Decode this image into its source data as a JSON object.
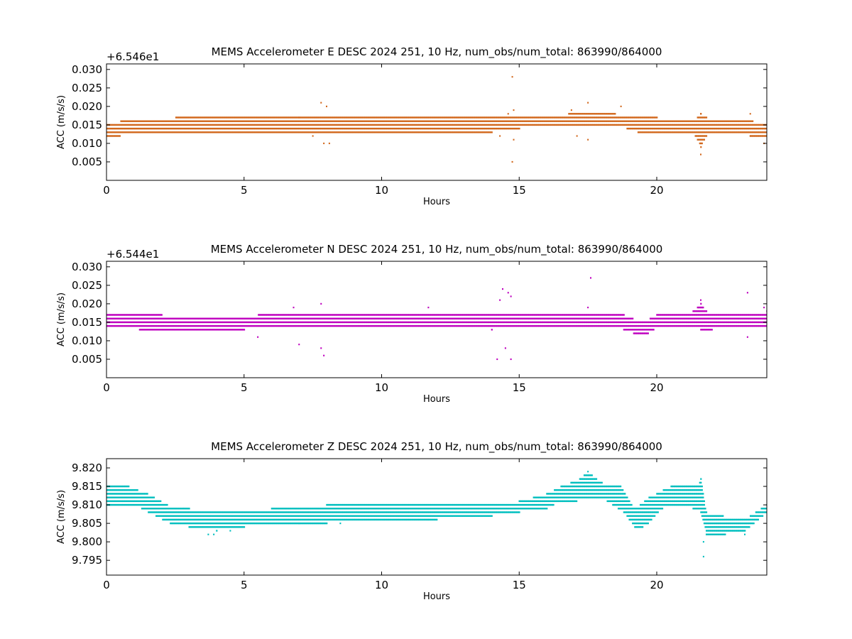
{
  "chart_data": [
    {
      "type": "scatter",
      "title": "MEMS Accelerometer E DESC 2024 251, 10 Hz, num_obs/num_total: 863990/864000",
      "xlabel": "Hours",
      "ylabel": "ACC (m/s/s)",
      "offset_label": "+6.546e1",
      "xlim": [
        0,
        24
      ],
      "ylim": [
        0.0,
        0.0315
      ],
      "xticks": [
        0,
        5,
        10,
        15,
        20
      ],
      "yticks": [
        0.005,
        0.01,
        0.015,
        0.02,
        0.025,
        0.03
      ],
      "ytick_labels": [
        "0.005",
        "0.010",
        "0.015",
        "0.020",
        "0.025",
        "0.030"
      ],
      "color": "#d2691e",
      "grid": false,
      "band_upper": [
        [
          0,
          0.015
        ],
        [
          0.5,
          0.016
        ],
        [
          1.5,
          0.016
        ],
        [
          2.5,
          0.017
        ],
        [
          6,
          0.017
        ],
        [
          9,
          0.017
        ],
        [
          13,
          0.017
        ],
        [
          14.5,
          0.017
        ],
        [
          16,
          0.017
        ],
        [
          16.8,
          0.018
        ],
        [
          18.5,
          0.018
        ],
        [
          19.1,
          0.017
        ],
        [
          20,
          0.017
        ],
        [
          21.3,
          0.016
        ],
        [
          21.6,
          0.018
        ],
        [
          22,
          0.016
        ],
        [
          23.5,
          0.016
        ],
        [
          24,
          0.015
        ]
      ],
      "band_lower": [
        [
          0,
          0.012
        ],
        [
          0.5,
          0.012
        ],
        [
          1.5,
          0.013
        ],
        [
          3,
          0.013
        ],
        [
          5,
          0.013
        ],
        [
          6,
          0.013
        ],
        [
          10,
          0.013
        ],
        [
          14,
          0.013
        ],
        [
          15,
          0.014
        ],
        [
          16.5,
          0.015
        ],
        [
          17.5,
          0.015
        ],
        [
          18.5,
          0.015
        ],
        [
          19.3,
          0.013
        ],
        [
          20,
          0.013
        ],
        [
          20.8,
          0.013
        ],
        [
          21.3,
          0.013
        ],
        [
          21.6,
          0.009
        ],
        [
          21.9,
          0.013
        ],
        [
          23.4,
          0.012
        ],
        [
          24,
          0.012
        ]
      ],
      "outliers": [
        [
          7.8,
          0.021
        ],
        [
          7.9,
          0.01
        ],
        [
          8.1,
          0.01
        ],
        [
          8.0,
          0.02
        ],
        [
          7.5,
          0.012
        ],
        [
          7.0,
          0.017
        ],
        [
          14.75,
          0.028
        ],
        [
          14.75,
          0.005
        ],
        [
          14.8,
          0.019
        ],
        [
          14.8,
          0.011
        ],
        [
          14.6,
          0.018
        ],
        [
          17.1,
          0.012
        ],
        [
          17.5,
          0.021
        ],
        [
          17.5,
          0.011
        ],
        [
          21.6,
          0.007
        ],
        [
          21.6,
          0.018
        ],
        [
          23.4,
          0.012
        ],
        [
          23.4,
          0.018
        ],
        [
          23.9,
          0.01
        ],
        [
          16.9,
          0.019
        ],
        [
          18.7,
          0.02
        ],
        [
          14.3,
          0.012
        ]
      ]
    },
    {
      "type": "scatter",
      "title": "MEMS Accelerometer N DESC 2024 251, 10 Hz, num_obs/num_total: 863990/864000",
      "xlabel": "Hours",
      "ylabel": "ACC (m/s/s)",
      "offset_label": "+6.544e1",
      "xlim": [
        0,
        24
      ],
      "ylim": [
        0.0,
        0.0315
      ],
      "xticks": [
        0,
        5,
        10,
        15,
        20
      ],
      "yticks": [
        0.005,
        0.01,
        0.015,
        0.02,
        0.025,
        0.03
      ],
      "ytick_labels": [
        "0.005",
        "0.010",
        "0.015",
        "0.020",
        "0.025",
        "0.030"
      ],
      "color": "#bf00bf",
      "grid": false,
      "band_upper": [
        [
          0,
          0.017
        ],
        [
          2,
          0.017
        ],
        [
          2.2,
          0.016
        ],
        [
          5,
          0.016
        ],
        [
          5.5,
          0.017
        ],
        [
          14,
          0.017
        ],
        [
          15,
          0.017
        ],
        [
          16.5,
          0.017
        ],
        [
          17.3,
          0.018
        ],
        [
          18.8,
          0.017
        ],
        [
          19.5,
          0.015
        ],
        [
          20,
          0.017
        ],
        [
          21.3,
          0.018
        ],
        [
          21.6,
          0.02
        ],
        [
          21.9,
          0.017
        ],
        [
          23.5,
          0.017
        ],
        [
          24,
          0.018
        ]
      ],
      "band_lower": [
        [
          0,
          0.014
        ],
        [
          1.2,
          0.013
        ],
        [
          2,
          0.013
        ],
        [
          3,
          0.013
        ],
        [
          5,
          0.013
        ],
        [
          6,
          0.014
        ],
        [
          10,
          0.014
        ],
        [
          14,
          0.013
        ],
        [
          15,
          0.014
        ],
        [
          16,
          0.014
        ],
        [
          17,
          0.014
        ],
        [
          18,
          0.014
        ],
        [
          18.8,
          0.013
        ],
        [
          19.5,
          0.011
        ],
        [
          19.9,
          0.013
        ],
        [
          20.5,
          0.014
        ],
        [
          21.3,
          0.014
        ],
        [
          21.6,
          0.013
        ],
        [
          22,
          0.013
        ],
        [
          23.5,
          0.014
        ],
        [
          24,
          0.014
        ]
      ],
      "outliers": [
        [
          7.8,
          0.02
        ],
        [
          7.9,
          0.006
        ],
        [
          7.8,
          0.008
        ],
        [
          7.0,
          0.009
        ],
        [
          6.8,
          0.019
        ],
        [
          14.4,
          0.024
        ],
        [
          14.6,
          0.023
        ],
        [
          14.2,
          0.005
        ],
        [
          14.7,
          0.005
        ],
        [
          14.7,
          0.022
        ],
        [
          17.6,
          0.027
        ],
        [
          17.5,
          0.019
        ],
        [
          21.6,
          0.021
        ],
        [
          23.3,
          0.023
        ],
        [
          23.3,
          0.011
        ],
        [
          23.9,
          0.019
        ],
        [
          11.7,
          0.019
        ],
        [
          5.5,
          0.011
        ],
        [
          14.5,
          0.008
        ],
        [
          14.3,
          0.021
        ]
      ]
    },
    {
      "type": "scatter",
      "title": "MEMS Accelerometer Z DESC 2024 251, 10 Hz, num_obs/num_total: 863990/864000",
      "xlabel": "Hours",
      "ylabel": "ACC (m/s/s)",
      "offset_label": "",
      "xlim": [
        0,
        24
      ],
      "ylim": [
        9.791,
        9.8225
      ],
      "xticks": [
        0,
        5,
        10,
        15,
        20
      ],
      "yticks": [
        9.795,
        9.8,
        9.805,
        9.81,
        9.815,
        9.82
      ],
      "ytick_labels": [
        "9.795",
        "9.800",
        "9.805",
        "9.810",
        "9.815",
        "9.820"
      ],
      "color": "#00bfbf",
      "grid": false,
      "band_upper": [
        [
          0,
          9.815
        ],
        [
          0.8,
          9.815
        ],
        [
          1.5,
          9.813
        ],
        [
          2.2,
          9.81
        ],
        [
          3,
          9.809
        ],
        [
          4,
          9.808
        ],
        [
          5,
          9.808
        ],
        [
          6,
          9.809
        ],
        [
          8,
          9.81
        ],
        [
          10,
          9.81
        ],
        [
          12,
          9.81
        ],
        [
          14,
          9.81
        ],
        [
          15,
          9.811
        ],
        [
          16,
          9.813
        ],
        [
          16.5,
          9.815
        ],
        [
          17.2,
          9.817
        ],
        [
          17.5,
          9.819
        ],
        [
          18,
          9.816
        ],
        [
          18.7,
          9.815
        ],
        [
          19.2,
          9.809
        ],
        [
          19.7,
          9.812
        ],
        [
          20.5,
          9.815
        ],
        [
          21.5,
          9.815
        ],
        [
          21.6,
          9.817
        ],
        [
          21.8,
          9.808
        ],
        [
          22.4,
          9.807
        ],
        [
          23.2,
          9.806
        ],
        [
          24,
          9.81
        ]
      ],
      "band_lower": [
        [
          0,
          9.81
        ],
        [
          1,
          9.81
        ],
        [
          1.5,
          9.808
        ],
        [
          2.3,
          9.805
        ],
        [
          3,
          9.804
        ],
        [
          4,
          9.803
        ],
        [
          5,
          9.804
        ],
        [
          6,
          9.805
        ],
        [
          8,
          9.805
        ],
        [
          10,
          9.806
        ],
        [
          12,
          9.806
        ],
        [
          14,
          9.807
        ],
        [
          15,
          9.808
        ],
        [
          16,
          9.809
        ],
        [
          16.5,
          9.811
        ],
        [
          17.1,
          9.811
        ],
        [
          17.5,
          9.812
        ],
        [
          18.2,
          9.811
        ],
        [
          18.8,
          9.808
        ],
        [
          19.3,
          9.803
        ],
        [
          19.7,
          9.805
        ],
        [
          20.2,
          9.809
        ],
        [
          21,
          9.81
        ],
        [
          21.6,
          9.808
        ],
        [
          21.8,
          9.802
        ],
        [
          22.5,
          9.802
        ],
        [
          23.2,
          9.803
        ],
        [
          24,
          9.808
        ]
      ],
      "outliers": [
        [
          3.7,
          9.802
        ],
        [
          3.9,
          9.802
        ],
        [
          4.5,
          9.803
        ],
        [
          21.7,
          9.796
        ],
        [
          21.7,
          9.8
        ],
        [
          17.5,
          9.819
        ],
        [
          23.2,
          9.802
        ],
        [
          2.8,
          9.809
        ],
        [
          7,
          9.805
        ],
        [
          8.5,
          9.805
        ]
      ]
    }
  ]
}
